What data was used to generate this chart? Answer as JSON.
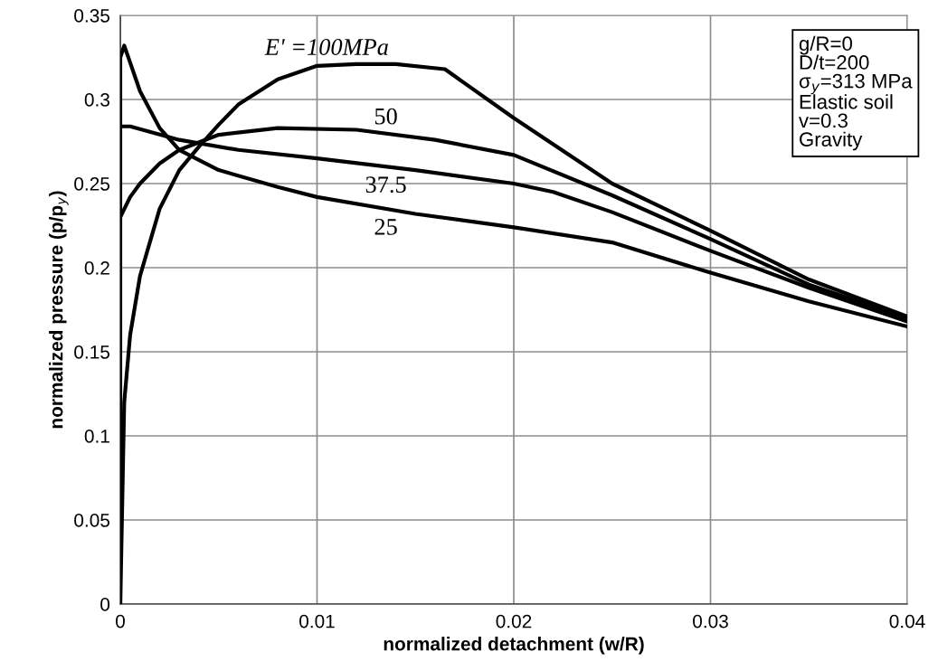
{
  "chart_data": {
    "type": "line",
    "xlabel": "normalized detachment (w/R)",
    "ylabel": "normalized pressure (p/p$_{y}$)",
    "xlim": [
      0,
      0.04
    ],
    "xticks": [
      {
        "value": 0,
        "label": "0"
      },
      0.01,
      0.02,
      0.03,
      0.04
    ],
    "ylim": [
      0,
      0.35
    ],
    "yticks": [
      {
        "value": 0,
        "label": "0"
      },
      0.05,
      0.1,
      0.15,
      0.2,
      0.25,
      0.3,
      0.35
    ],
    "grid": true,
    "legend": false,
    "marker": "none",
    "line_style": "solid",
    "series": [
      {
        "name": "E' =100MPa",
        "color": "#000000",
        "x": [
          0,
          0.0002,
          0.0005,
          0.001,
          0.002,
          0.003,
          0.004,
          0.005,
          0.006,
          0.008,
          0.01,
          0.012,
          0.014,
          0.0165,
          0.02,
          0.025,
          0.03,
          0.035,
          0.04
        ],
        "values": [
          0,
          0.12,
          0.16,
          0.195,
          0.235,
          0.258,
          0.272,
          0.285,
          0.297,
          0.312,
          0.32,
          0.321,
          0.321,
          0.318,
          0.289,
          0.25,
          0.222,
          0.193,
          0.171
        ]
      },
      {
        "name": "50",
        "color": "#000000",
        "x": [
          0,
          0.0005,
          0.001,
          0.002,
          0.003,
          0.005,
          0.008,
          0.012,
          0.016,
          0.02,
          0.025,
          0.03,
          0.035,
          0.04
        ],
        "values": [
          0.23,
          0.242,
          0.25,
          0.262,
          0.27,
          0.279,
          0.283,
          0.282,
          0.276,
          0.267,
          0.243,
          0.217,
          0.19,
          0.17
        ]
      },
      {
        "name": "37.5",
        "color": "#000000",
        "x": [
          0,
          0.0005,
          0.003,
          0.006,
          0.01,
          0.015,
          0.02,
          0.022,
          0.025,
          0.03,
          0.035,
          0.04
        ],
        "values": [
          0.284,
          0.284,
          0.276,
          0.27,
          0.265,
          0.258,
          0.25,
          0.245,
          0.233,
          0.21,
          0.188,
          0.168
        ]
      },
      {
        "name": "25",
        "color": "#000000",
        "x": [
          0,
          0,
          0.0002,
          0.0005,
          0.001,
          0.002,
          0.003,
          0.005,
          0.008,
          0.01,
          0.015,
          0.02,
          0.025,
          0.03,
          0.035,
          0.04
        ],
        "values": [
          0,
          0.325,
          0.332,
          0.322,
          0.305,
          0.283,
          0.27,
          0.258,
          0.248,
          0.242,
          0.232,
          0.224,
          0.215,
          0.197,
          0.18,
          0.165
        ]
      }
    ],
    "annotations": [
      "g/R=0\nD/t=200\nσ$_{y}$=313 MPa\nElastic soil\nv=0.3\nGravity"
    ]
  }
}
